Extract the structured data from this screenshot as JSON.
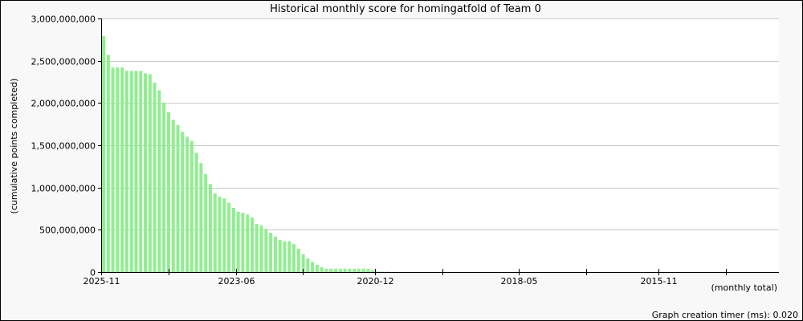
{
  "chart_data": {
    "type": "bar",
    "title": "Historical monthly score for homingatfold of Team 0",
    "ylabel": "(cumulative points completed)",
    "xlabel": "(monthly total)",
    "footer": "Graph creation timer (ms): 0.020",
    "ylim": [
      0,
      3000000000
    ],
    "yticks": [
      0,
      500000000,
      1000000000,
      1500000000,
      2000000000,
      2500000000,
      3000000000
    ],
    "ytick_labels": [
      "0",
      "500,000,000",
      "1,000,000,000",
      "1,500,000,000",
      "2,000,000,000",
      "2,500,000,000",
      "3,000,000,000"
    ],
    "x_axis_start": "2025-11",
    "x_axis_end": "2013-09",
    "x_direction": "reverse-chronological",
    "xtick_labels": [
      "2025-11",
      "2023-06",
      "2020-12",
      "2018-05",
      "2015-11"
    ],
    "grid": true,
    "bar_color": "#90ee90",
    "x": [
      "2025-11",
      "2025-10",
      "2025-09",
      "2025-08",
      "2025-07",
      "2025-06",
      "2025-05",
      "2025-04",
      "2025-03",
      "2025-02",
      "2025-01",
      "2024-12",
      "2024-11",
      "2024-10",
      "2024-09",
      "2024-08",
      "2024-07",
      "2024-06",
      "2024-05",
      "2024-04",
      "2024-03",
      "2024-02",
      "2024-01",
      "2023-12",
      "2023-11",
      "2023-10",
      "2023-09",
      "2023-08",
      "2023-07",
      "2023-06",
      "2023-05",
      "2023-04",
      "2023-03",
      "2023-02",
      "2023-01",
      "2022-12",
      "2022-11",
      "2022-10",
      "2022-09",
      "2022-08",
      "2022-07",
      "2022-06",
      "2022-05",
      "2022-04",
      "2022-03",
      "2022-02",
      "2022-01",
      "2021-12",
      "2021-11",
      "2021-10",
      "2021-09",
      "2021-08",
      "2021-07",
      "2021-06",
      "2021-05",
      "2021-04",
      "2021-03",
      "2021-02",
      "2021-01",
      "2020-12",
      "2020-11",
      "2020-10"
    ],
    "values": [
      2790000000,
      2570000000,
      2420000000,
      2420000000,
      2420000000,
      2380000000,
      2380000000,
      2380000000,
      2380000000,
      2350000000,
      2340000000,
      2240000000,
      2150000000,
      2000000000,
      1890000000,
      1800000000,
      1740000000,
      1660000000,
      1600000000,
      1550000000,
      1410000000,
      1290000000,
      1160000000,
      1040000000,
      930000000,
      890000000,
      870000000,
      820000000,
      760000000,
      715000000,
      700000000,
      680000000,
      645000000,
      570000000,
      550000000,
      510000000,
      465000000,
      420000000,
      380000000,
      365000000,
      365000000,
      330000000,
      275000000,
      210000000,
      160000000,
      120000000,
      85000000,
      57000000,
      40000000,
      40000000,
      40000000,
      40000000,
      40000000,
      40000000,
      40000000,
      40000000,
      40000000,
      40000000,
      20000000,
      5000000,
      5000000,
      5000000
    ]
  }
}
